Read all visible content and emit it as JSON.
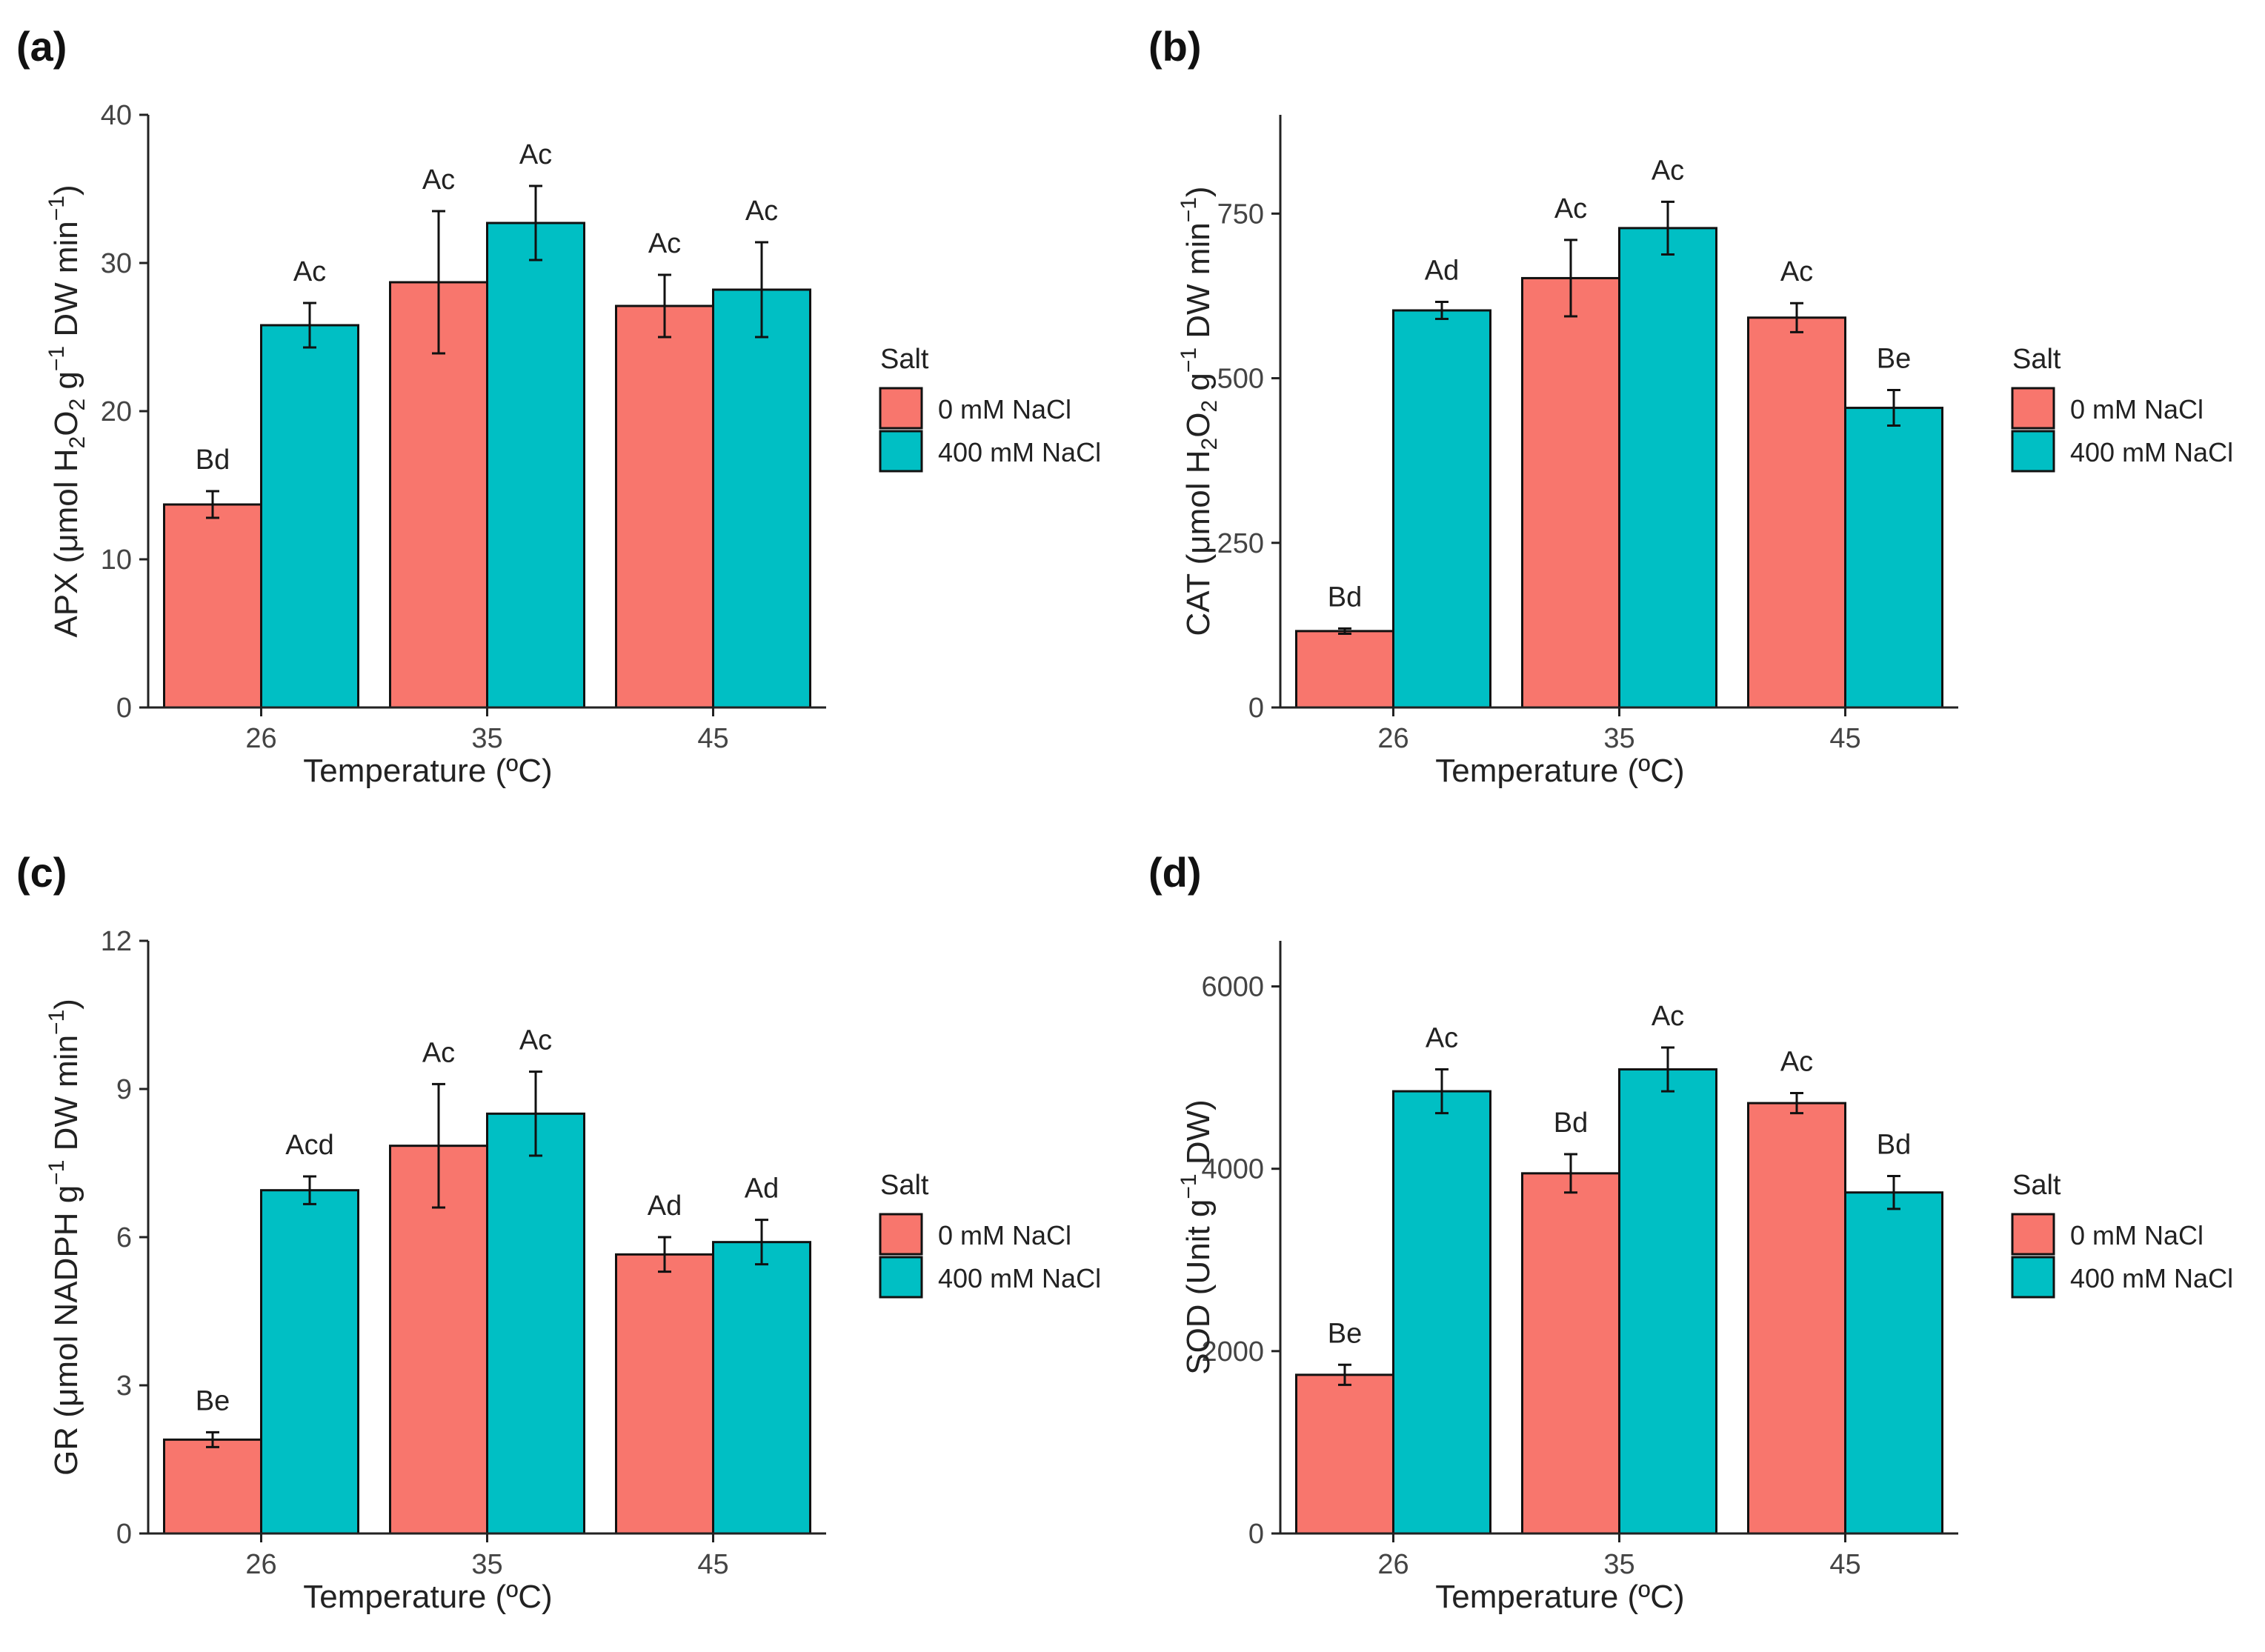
{
  "colors": {
    "salt0": "#F8766D",
    "salt400": "#00BFC4",
    "stroke": "#111111",
    "axis": "#222222"
  },
  "legend": {
    "title": "Salt",
    "entries": [
      "0 mM NaCl",
      "400 mM NaCl"
    ]
  },
  "chart_data": [
    {
      "panel_label": "(a)",
      "type": "bar",
      "title": "",
      "xlabel": "Temperature (ºC)",
      "ylabel_parts": [
        "APX (",
        "μ",
        "mol H",
        "2",
        "O",
        "2",
        " g",
        "−1",
        " DW min",
        "−1",
        ")"
      ],
      "categories": [
        "26",
        "35",
        "45"
      ],
      "ylim": [
        0,
        40
      ],
      "yticks": [
        0,
        10,
        20,
        30,
        40
      ],
      "series": [
        {
          "name": "0 mM NaCl",
          "values": [
            13.7,
            28.7,
            27.1
          ],
          "errors": [
            0.9,
            4.8,
            2.1
          ],
          "letters": [
            "Bd",
            "Ac",
            "Ac"
          ]
        },
        {
          "name": "400 mM NaCl",
          "values": [
            25.8,
            32.7,
            28.2
          ],
          "errors": [
            1.5,
            2.5,
            3.2
          ],
          "letters": [
            "Ac",
            "Ac",
            "Ac"
          ]
        }
      ]
    },
    {
      "panel_label": "(b)",
      "type": "bar",
      "title": "",
      "xlabel": "Temperature (ºC)",
      "ylabel_parts": [
        "CAT (",
        "μ",
        "mol H",
        "2",
        "O",
        "2",
        " g",
        "−1",
        " DW min",
        "−1",
        ")"
      ],
      "categories": [
        "26",
        "35",
        "45"
      ],
      "ylim": [
        0,
        900
      ],
      "yticks": [
        0,
        250,
        500,
        750
      ],
      "series": [
        {
          "name": "0 mM NaCl",
          "values": [
            116,
            652,
            592
          ],
          "errors": [
            4,
            58,
            22
          ],
          "letters": [
            "Bd",
            "Ac",
            "Ac"
          ]
        },
        {
          "name": "400 mM NaCl",
          "values": [
            603,
            728,
            455
          ],
          "errors": [
            13,
            40,
            27
          ],
          "letters": [
            "Ad",
            "Ac",
            "Be"
          ]
        }
      ]
    },
    {
      "panel_label": "(c)",
      "type": "bar",
      "title": "",
      "xlabel": "Temperature (ºC)",
      "ylabel_parts": [
        "GR (",
        "μ",
        "mol NADPH g",
        "",
        "",
        "",
        "",
        "−1",
        " DW min",
        "−1",
        ")"
      ],
      "categories": [
        "26",
        "35",
        "45"
      ],
      "ylim": [
        0,
        12
      ],
      "yticks": [
        0,
        3,
        6,
        9,
        12
      ],
      "series": [
        {
          "name": "0 mM NaCl",
          "values": [
            1.9,
            7.85,
            5.65
          ],
          "errors": [
            0.15,
            1.25,
            0.35
          ],
          "letters": [
            "Be",
            "Ac",
            "Ad"
          ]
        },
        {
          "name": "400 mM NaCl",
          "values": [
            6.95,
            8.5,
            5.9
          ],
          "errors": [
            0.28,
            0.85,
            0.45
          ],
          "letters": [
            "Acd",
            "Ac",
            "Ad"
          ]
        }
      ]
    },
    {
      "panel_label": "(d)",
      "type": "bar",
      "title": "",
      "xlabel": "Temperature (ºC)",
      "ylabel_parts": [
        "SOD (Unit g",
        "",
        "",
        "",
        "",
        "",
        "",
        "−1",
        " DW)",
        "",
        ""
      ],
      "categories": [
        "26",
        "35",
        "45"
      ],
      "ylim": [
        0,
        6500
      ],
      "yticks": [
        0,
        2000,
        4000,
        6000
      ],
      "series": [
        {
          "name": "0 mM NaCl",
          "values": [
            1740,
            3950,
            4720
          ],
          "errors": [
            110,
            210,
            110
          ],
          "letters": [
            "Be",
            "Bd",
            "Ac"
          ]
        },
        {
          "name": "400 mM NaCl",
          "values": [
            4850,
            5090,
            3740
          ],
          "errors": [
            240,
            240,
            180
          ],
          "letters": [
            "Ac",
            "Ac",
            "Bd"
          ]
        }
      ]
    }
  ]
}
